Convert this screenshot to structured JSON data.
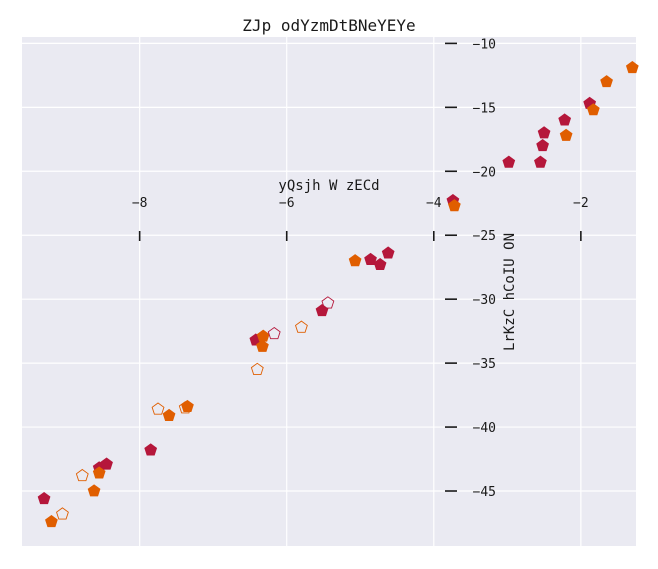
{
  "chart_data": {
    "type": "scatter",
    "title": "ZJp odYzmDtBNeYEYe",
    "xlabel": "yQsjh  W zECd",
    "ylabel": "LrKzC hCoIU ON",
    "xlim": [
      -9.6,
      -1.25
    ],
    "ylim": [
      -49.3,
      -9.5
    ],
    "xticks": [
      -8,
      -6,
      -4,
      -2
    ],
    "yticks": [
      -10,
      -15,
      -20,
      -25,
      -30,
      -35,
      -40,
      -45
    ],
    "grid": true,
    "legend": "none",
    "series": [
      {
        "marker": "pentagon",
        "filled": true,
        "color": "#b5173b",
        "points": [
          [
            -9.3,
            -45.6
          ],
          [
            -8.55,
            -43.2
          ],
          [
            -8.45,
            -42.9
          ],
          [
            -7.85,
            -41.8
          ],
          [
            -6.42,
            -33.2
          ],
          [
            -5.52,
            -30.9
          ],
          [
            -4.86,
            -26.9
          ],
          [
            -4.73,
            -27.3
          ],
          [
            -4.62,
            -26.4
          ],
          [
            -3.74,
            -22.3
          ],
          [
            -2.98,
            -19.3
          ],
          [
            -2.55,
            -19.3
          ],
          [
            -2.52,
            -18.0
          ],
          [
            -2.5,
            -17.0
          ],
          [
            -2.22,
            -16.0
          ],
          [
            -1.88,
            -14.7
          ]
        ]
      },
      {
        "marker": "pentagon",
        "filled": true,
        "color": "#e05e00",
        "points": [
          [
            -9.2,
            -47.4
          ],
          [
            -8.62,
            -45.0
          ],
          [
            -8.55,
            -43.6
          ],
          [
            -7.6,
            -39.1
          ],
          [
            -7.35,
            -38.4
          ],
          [
            -6.33,
            -33.7
          ],
          [
            -6.32,
            -32.9
          ],
          [
            -5.07,
            -27.0
          ],
          [
            -3.72,
            -22.7
          ],
          [
            -2.2,
            -17.2
          ],
          [
            -1.83,
            -15.2
          ],
          [
            -1.65,
            -13.0
          ],
          [
            -1.3,
            -11.9
          ]
        ]
      },
      {
        "marker": "pentagon",
        "filled": false,
        "color": "#b5173b",
        "points": [
          [
            -6.17,
            -32.7
          ],
          [
            -5.44,
            -30.3
          ]
        ]
      },
      {
        "marker": "pentagon",
        "filled": false,
        "color": "#e05e00",
        "points": [
          [
            -9.05,
            -46.8
          ],
          [
            -8.78,
            -43.8
          ],
          [
            -7.75,
            -38.6
          ],
          [
            -7.38,
            -38.5
          ],
          [
            -6.4,
            -35.5
          ],
          [
            -5.8,
            -32.2
          ]
        ]
      }
    ]
  }
}
